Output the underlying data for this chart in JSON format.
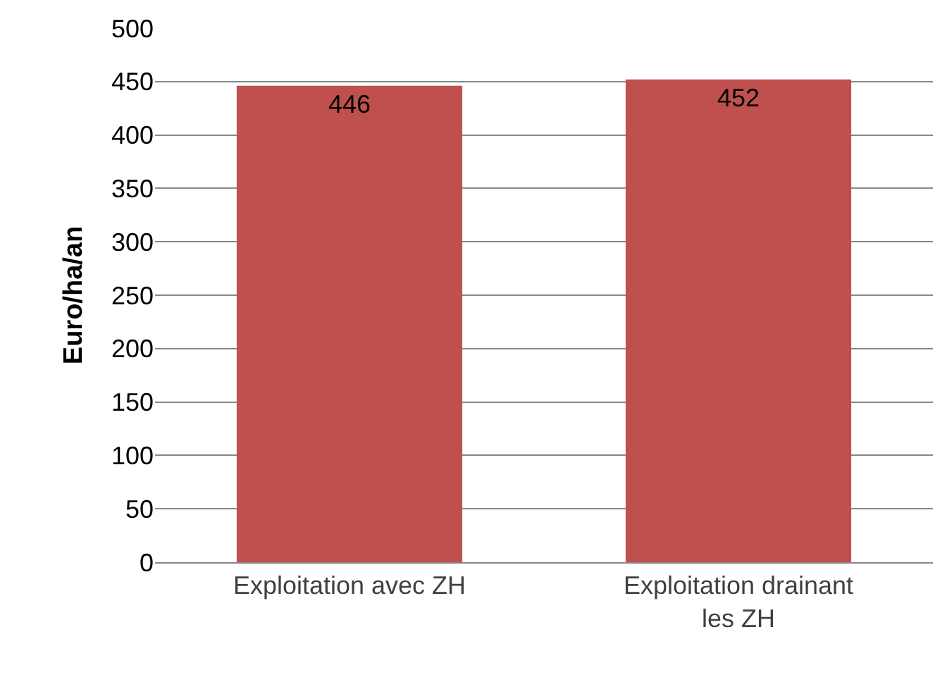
{
  "chart_data": {
    "type": "bar",
    "ylabel": "Euro/ha/an",
    "categories": [
      "Exploitation avec ZH",
      "Exploitation drainant les ZH"
    ],
    "values": [
      446,
      452
    ],
    "color": "#c0504d",
    "ylim": [
      0,
      500
    ],
    "yticks": [
      0,
      50,
      100,
      150,
      200,
      250,
      300,
      350,
      400,
      450,
      500
    ],
    "grid": "y",
    "data_labels": true,
    "legend": false
  }
}
